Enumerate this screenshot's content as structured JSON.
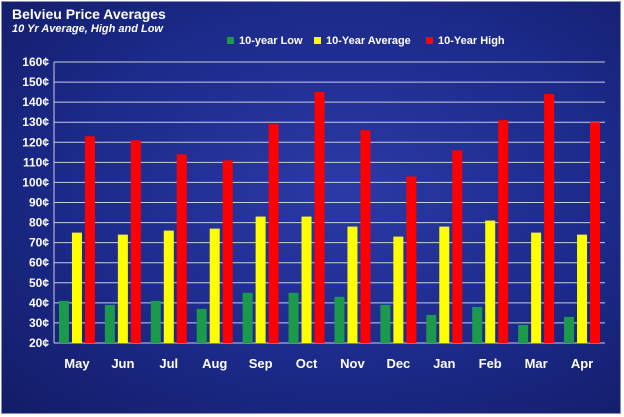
{
  "chart_data": {
    "type": "bar",
    "title": "Belvieu Price Averages",
    "subtitle": "10 Yr Average, High and Low",
    "categories": [
      "May",
      "Jun",
      "Jul",
      "Aug",
      "Sep",
      "Oct",
      "Nov",
      "Dec",
      "Jan",
      "Feb",
      "Mar",
      "Apr"
    ],
    "series": [
      {
        "name": "10-year Low",
        "color": "#1a9a4a",
        "values": [
          41,
          39,
          41,
          37,
          45,
          45,
          43,
          39,
          34,
          38,
          29,
          33
        ]
      },
      {
        "name": "10-Year Average",
        "color": "#ffff00",
        "values": [
          75,
          74,
          76,
          77,
          83,
          83,
          78,
          73,
          78,
          81,
          75,
          74
        ]
      },
      {
        "name": "10-Year High",
        "color": "#ff0000",
        "values": [
          123,
          121,
          114,
          111,
          129,
          145,
          126,
          103,
          116,
          131,
          144,
          130
        ]
      }
    ],
    "y_ticks": [
      "20¢",
      "30¢",
      "40¢",
      "50¢",
      "60¢",
      "70¢",
      "80¢",
      "90¢",
      "100¢",
      "110¢",
      "120¢",
      "130¢",
      "140¢",
      "150¢",
      "160¢"
    ],
    "ylim": [
      20,
      160
    ],
    "ystep": 10,
    "xlabel": "",
    "ylabel": "",
    "grid": true,
    "legend_position": "top"
  }
}
